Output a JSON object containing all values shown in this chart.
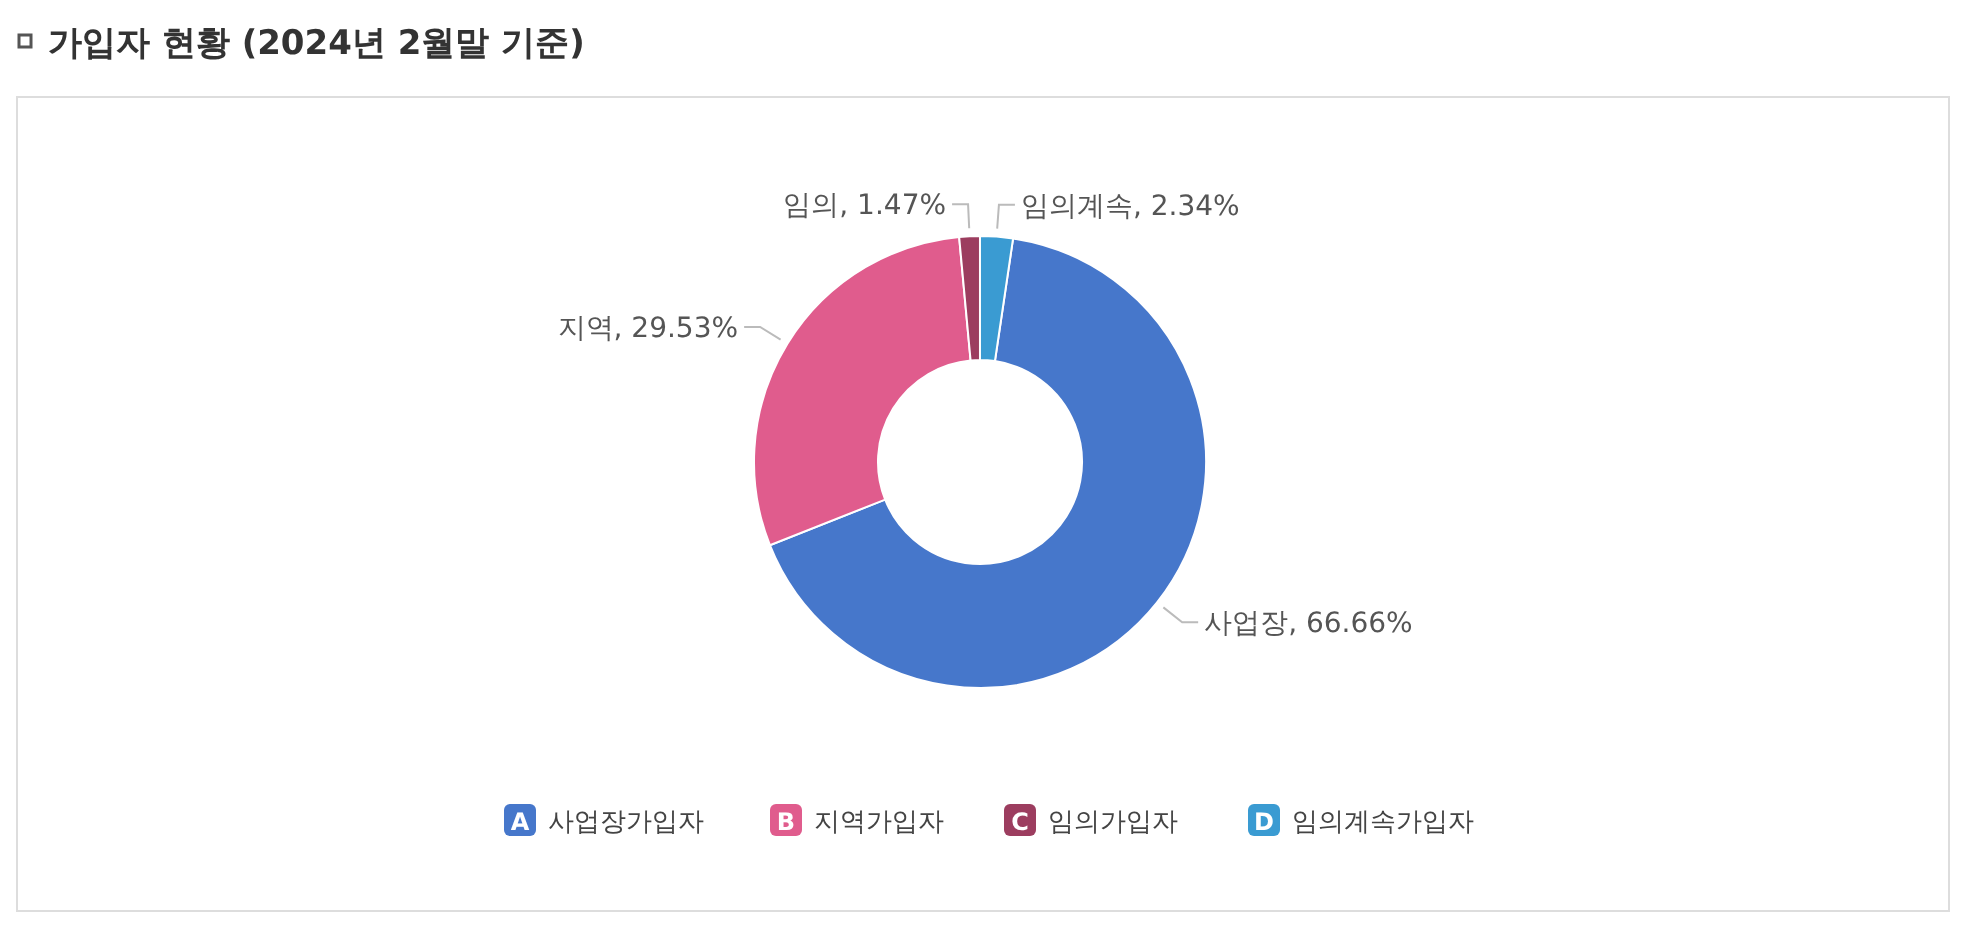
{
  "chart_data": {
    "type": "donut",
    "title": "가입자 현황 (2024년 2월말 기준)",
    "categories": [
      "사업장가입자",
      "지역가입자",
      "임의가입자",
      "임의계속가입자"
    ],
    "values": [
      66.66,
      29.53,
      1.47,
      2.34
    ],
    "colors": [
      "#4677cb",
      "#e05c8d",
      "#9c3d5f",
      "#3a9bd2"
    ],
    "value_labels": [
      "사업장, 66.66%",
      "지역, 29.53%",
      "임의, 1.47%",
      "임의계속, 2.34%"
    ],
    "annotations": [
      "A",
      "B",
      "C",
      "D"
    ],
    "legend": "bottom"
  }
}
